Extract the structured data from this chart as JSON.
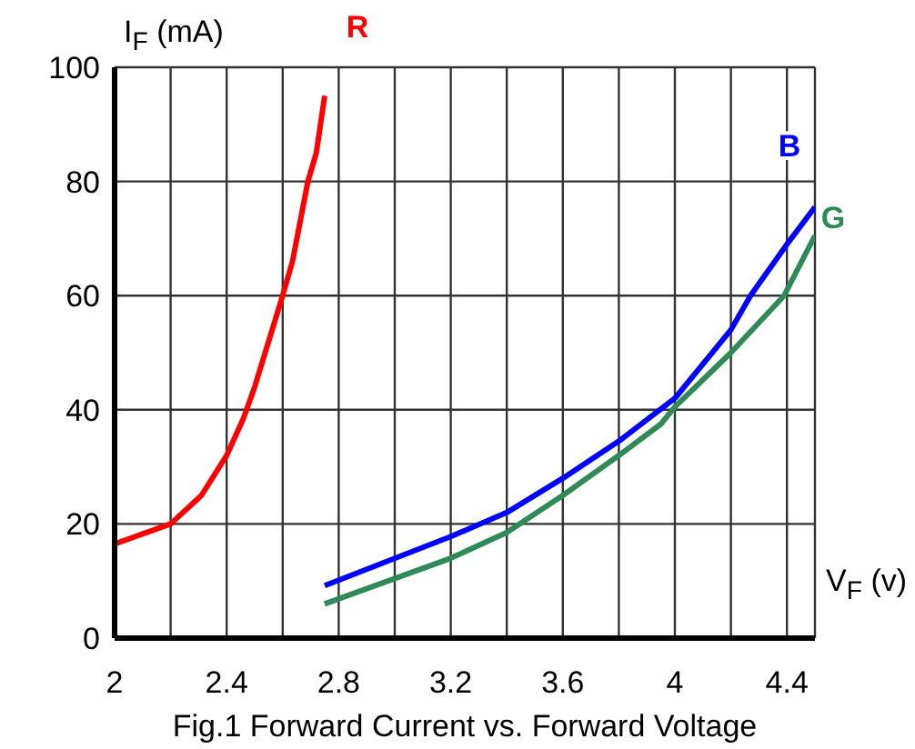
{
  "chart_data": {
    "type": "line",
    "title": "Fig.1 Forward Current vs. Forward Voltage",
    "xlabel": "V$_{F}$ (v)",
    "ylabel": "I$_{F}$ (mA)",
    "xlim": [
      2,
      4.5
    ],
    "xticks": [
      2,
      {
        "value": 2.2,
        "label": null
      },
      2.4,
      {
        "value": 2.6,
        "label": null
      },
      2.8,
      {
        "value": 3.0,
        "label": null
      },
      3.2,
      {
        "value": 3.4,
        "label": null
      },
      3.6,
      {
        "value": 3.8,
        "label": null
      },
      4,
      {
        "value": 4.2,
        "label": null
      },
      4.4
    ],
    "ylim": [
      0,
      100
    ],
    "yticks": [
      0,
      20,
      40,
      60,
      80,
      100
    ],
    "grid": true,
    "marker": "none",
    "line_style": "solid",
    "series": [
      {
        "name": "R",
        "color": "#ff0000",
        "x": [
          2,
          2.2,
          2.31,
          2.4,
          2.46,
          2.5,
          2.55,
          2.6,
          2.635,
          2.69,
          2.72,
          2.75
        ],
        "values": [
          16.5,
          20,
          25,
          32,
          38.5,
          44,
          52,
          60,
          66,
          80,
          85,
          95
        ]
      },
      {
        "name": "B",
        "color": "#0000ff",
        "x": [
          2.75,
          3.2,
          3.4,
          3.6,
          3.8,
          4.0,
          4.2,
          4.27,
          4.4,
          4.5
        ],
        "values": [
          9.2,
          17.8,
          22,
          28,
          34.5,
          42,
          54,
          60,
          69,
          75.5
        ]
      },
      {
        "name": "G",
        "color": "#2e8b57",
        "x": [
          2.75,
          3.2,
          3.4,
          3.6,
          3.8,
          3.95,
          4.0,
          4.2,
          4.39,
          4.5
        ],
        "values": [
          6,
          14,
          18.5,
          25,
          32,
          37.5,
          40.5,
          50,
          60,
          70.5
        ]
      }
    ]
  }
}
